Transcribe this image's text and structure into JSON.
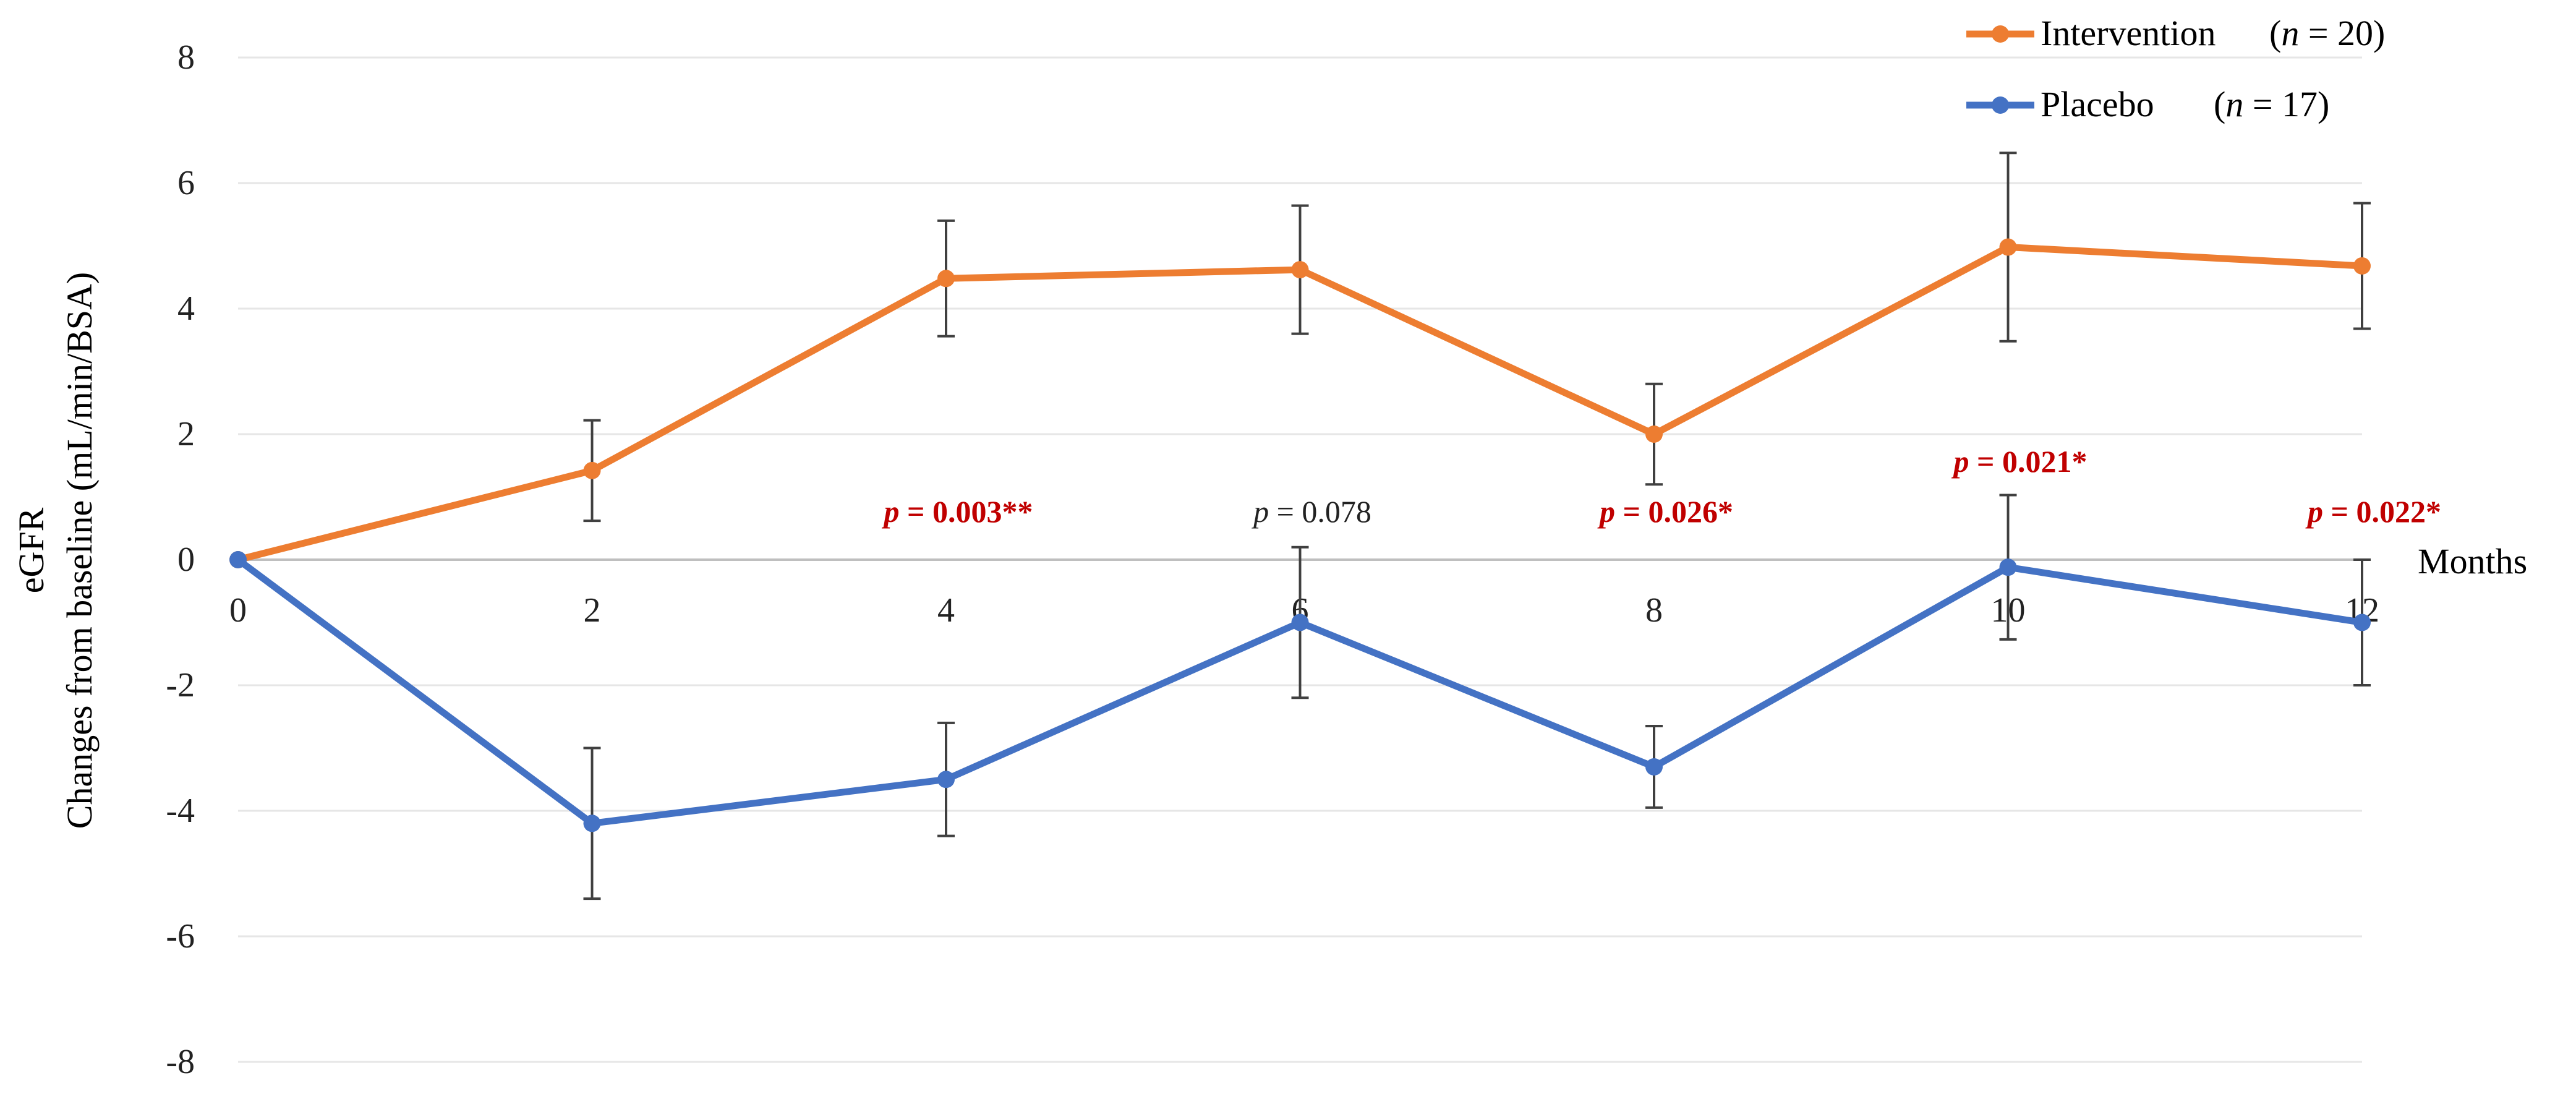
{
  "chart_data": {
    "type": "line",
    "xlabel": "Months",
    "ylabel_line1": "eGFR",
    "ylabel_line2": "Changes from baseline (mL/min/BSA)",
    "x": [
      0,
      2,
      4,
      6,
      8,
      10,
      12
    ],
    "x_ticks": [
      "0",
      "2",
      "4",
      "6",
      "8",
      "10",
      "12"
    ],
    "y_ticks": [
      "8",
      "6",
      "4",
      "2",
      "0",
      "-2",
      "-4",
      "-6",
      "-8"
    ],
    "xlim": [
      0,
      12
    ],
    "ylim": [
      -8,
      8
    ],
    "grid": "horizontal",
    "legend_position": "top-right",
    "series": [
      {
        "name": "Intervention",
        "n_label": "(n = 20)",
        "n_value": "20",
        "color": "#ED7D31",
        "values": [
          0,
          1.42,
          4.48,
          4.62,
          2.0,
          4.98,
          4.68
        ],
        "error": [
          0,
          0.8,
          0.92,
          1.02,
          0.8,
          1.5,
          1.0
        ]
      },
      {
        "name": "Placebo",
        "n_label": "(n = 17)",
        "n_value": "17",
        "color": "#4472C4",
        "values": [
          0,
          -4.2,
          -3.5,
          -1.0,
          -3.3,
          -0.12,
          -1.0
        ],
        "error": [
          0,
          1.2,
          0.9,
          1.2,
          0.65,
          1.15,
          1.0
        ]
      }
    ],
    "annotations": [
      {
        "x": 4,
        "prefix": "p",
        "text": " = 0.003**",
        "significant": true,
        "y": 0.6
      },
      {
        "x": 6,
        "prefix": "p",
        "text": " = 0.078",
        "significant": false,
        "y": 0.6
      },
      {
        "x": 8,
        "prefix": "p",
        "text": " = 0.026*",
        "significant": true,
        "y": 0.6
      },
      {
        "x": 10,
        "prefix": "p",
        "text": " = 0.021*",
        "significant": true,
        "y": 1.4
      },
      {
        "x": 12,
        "prefix": "p",
        "text": " = 0.022*",
        "significant": true,
        "y": 0.6
      }
    ]
  }
}
